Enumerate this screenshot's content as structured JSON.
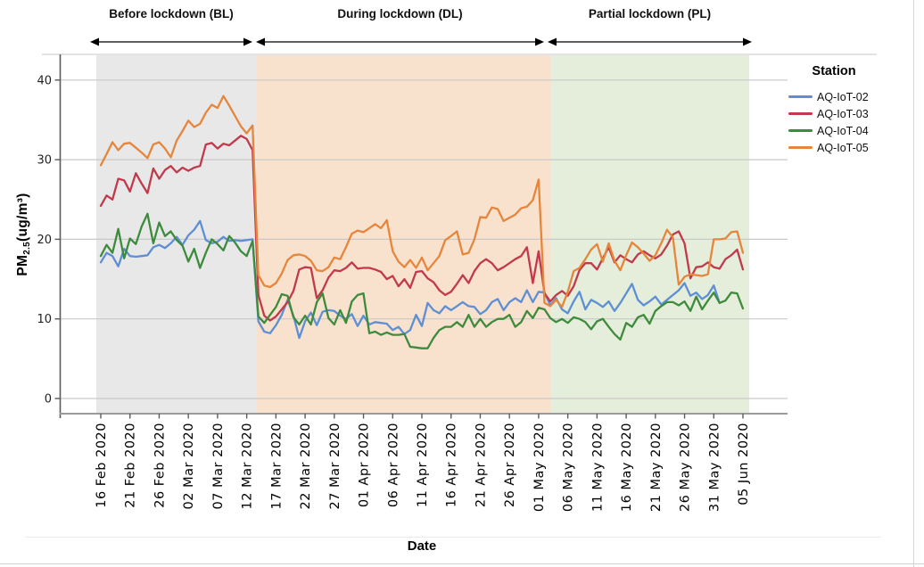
{
  "chart_data": {
    "type": "line",
    "title": "",
    "xlabel": "Date",
    "ylabel": "PM2.5(ug/m3)",
    "ylabel_parts": {
      "main": "PM",
      "sub": "2.5",
      "unit": "(ug/m³)"
    },
    "ylim": [
      0,
      43
    ],
    "yticks": [
      0,
      10,
      20,
      30,
      40
    ],
    "grid": "horizontal",
    "legend_title": "Station",
    "legend_position": "right",
    "x_start_date": "16 Feb 2020",
    "x_end_date": "05 Jun 2020",
    "x_unit": "day",
    "x_tick_interval_days": 5,
    "x_tick_labels": [
      "16 Feb 2020",
      "21 Feb 2020",
      "26 Feb 2020",
      "02 Mar 2020",
      "07 Mar 2020",
      "12 Mar 2020",
      "17 Mar 2020",
      "22 Mar 2020",
      "27 Mar 2020",
      "01 Apr 2020",
      "06 Apr 2020",
      "11 Apr 2020",
      "16 Apr 2020",
      "21 Apr 2020",
      "26 Apr 2020",
      "01 May 2020",
      "06 May 2020",
      "11 May 2020",
      "16 May 2020",
      "21 May 2020",
      "26 May 2020",
      "31 May 2020",
      "05 Jun 2020"
    ],
    "regions": [
      {
        "label": "Before lockdown (BL)",
        "start_date": "16 Feb 2020",
        "end_date": "13 Mar 2020",
        "band_color": "#e8e8e8"
      },
      {
        "label": "During lockdown (DL)",
        "start_date": "14 Mar 2020",
        "end_date": "01 May 2020",
        "band_color": "#f9e2cd"
      },
      {
        "label": "Partial lockdown (PL)",
        "start_date": "02 May 2020",
        "end_date": "05 Jun 2020",
        "band_color": "#e5eeda"
      }
    ],
    "series": [
      {
        "name": "AQ-IoT-02",
        "color": "#5e8fd5",
        "start_date": "16 Feb 2020",
        "values": [
          17.1,
          18.3,
          17.9,
          16.6,
          18.8,
          17.9,
          17.8,
          17.9,
          18.0,
          19.0,
          19.3,
          18.9,
          19.5,
          20.3,
          19.3,
          20.5,
          21.2,
          22.3,
          19.9,
          19.5,
          19.7,
          20.3,
          19.8,
          19.9,
          19.8,
          19.9,
          20.0,
          9.7,
          8.4,
          8.2,
          9.2,
          10.5,
          12.4,
          10.4,
          7.6,
          9.7,
          10.8,
          9.2,
          10.9,
          11.1,
          11.0,
          10.4,
          10.0,
          10.6,
          9.1,
          10.4,
          9.3,
          9.6,
          9.5,
          9.4,
          8.6,
          9.0,
          8.1,
          8.6,
          10.5,
          9.1,
          12.0,
          11.1,
          10.7,
          11.6,
          11.1,
          11.6,
          12.1,
          11.6,
          11.5,
          10.6,
          11.1,
          12.1,
          12.5,
          11.1,
          12.1,
          12.6,
          12.1,
          13.6,
          12.1,
          13.4,
          13.3,
          11.7,
          12.6,
          11.2,
          10.7,
          12.2,
          13.4,
          11.2,
          12.4,
          12.0,
          11.5,
          12.2,
          11.0,
          12.0,
          13.2,
          14.4,
          12.4,
          11.7,
          12.2,
          12.8,
          11.8,
          12.4,
          13.0,
          13.6,
          14.5,
          12.9,
          13.3,
          12.5,
          13.0,
          14.2,
          12.0
        ]
      },
      {
        "name": "AQ-IoT-03",
        "color": "#c13a4c",
        "start_date": "16 Feb 2020",
        "values": [
          24.2,
          25.5,
          25.0,
          27.6,
          27.4,
          26.0,
          28.3,
          27.0,
          25.8,
          28.9,
          27.6,
          28.7,
          29.2,
          28.4,
          29.0,
          28.6,
          29.0,
          29.2,
          31.9,
          32.1,
          31.4,
          32.0,
          31.8,
          32.4,
          33.0,
          32.6,
          31.2,
          13.0,
          10.4,
          9.8,
          10.3,
          11.2,
          12.1,
          13.5,
          16.2,
          16.5,
          16.4,
          12.6,
          13.6,
          15.2,
          16.1,
          16.0,
          16.4,
          17.1,
          16.3,
          16.4,
          16.4,
          16.2,
          15.9,
          15.0,
          15.4,
          14.1,
          15.0,
          13.9,
          15.9,
          16.0,
          15.1,
          14.6,
          13.6,
          13.0,
          13.4,
          14.4,
          15.5,
          14.5,
          16.0,
          17.0,
          17.5,
          17.0,
          16.1,
          16.5,
          17.0,
          17.5,
          17.9,
          19.0,
          14.5,
          18.5,
          13.2,
          12.2,
          13.0,
          13.5,
          12.9,
          14.1,
          16.1,
          17.0,
          17.0,
          16.2,
          17.6,
          19.0,
          17.1,
          18.0,
          17.5,
          17.1,
          18.1,
          18.5,
          18.0,
          17.6,
          18.1,
          19.2,
          20.6,
          21.0,
          19.5,
          15.1,
          16.5,
          16.6,
          17.1,
          16.5,
          16.3,
          17.5,
          18.0,
          18.7,
          16.2
        ]
      },
      {
        "name": "AQ-IoT-04",
        "color": "#3e8b3d",
        "start_date": "16 Feb 2020",
        "values": [
          17.9,
          19.3,
          18.3,
          21.3,
          17.6,
          20.1,
          19.4,
          21.6,
          23.2,
          19.5,
          22.1,
          20.4,
          21.0,
          19.9,
          19.2,
          17.2,
          18.8,
          16.4,
          18.3,
          20.0,
          19.4,
          18.6,
          20.4,
          19.6,
          18.5,
          17.9,
          19.8,
          10.3,
          9.5,
          10.5,
          11.5,
          13.1,
          12.9,
          10.2,
          9.3,
          10.4,
          9.3,
          12.1,
          13.2,
          10.1,
          9.3,
          11.1,
          9.5,
          12.2,
          13.0,
          13.2,
          8.2,
          8.4,
          8.0,
          8.3,
          8.0,
          8.0,
          8.1,
          6.5,
          6.4,
          6.3,
          6.3,
          7.6,
          8.6,
          9.0,
          9.0,
          9.6,
          9.0,
          10.5,
          9.0,
          10.0,
          9.0,
          9.6,
          10.0,
          10.0,
          10.5,
          9.0,
          9.6,
          11.0,
          10.1,
          11.4,
          11.2,
          10.1,
          9.6,
          10.0,
          9.5,
          10.2,
          10.0,
          9.6,
          8.7,
          9.7,
          10.0,
          9.0,
          8.1,
          7.4,
          9.5,
          9.0,
          10.2,
          10.5,
          9.4,
          11.0,
          11.6,
          12.1,
          12.1,
          11.7,
          12.2,
          11.0,
          12.8,
          11.2,
          12.3,
          13.3,
          12.0,
          12.3,
          13.3,
          13.2,
          11.3
        ]
      },
      {
        "name": "AQ-IoT-05",
        "color": "#e5863c",
        "start_date": "16 Feb 2020",
        "values": [
          29.3,
          30.7,
          32.2,
          31.2,
          32.0,
          32.1,
          31.5,
          30.9,
          30.2,
          31.9,
          32.2,
          31.4,
          30.3,
          32.4,
          33.6,
          34.9,
          34.1,
          34.5,
          35.9,
          36.9,
          36.5,
          38.0,
          36.8,
          35.5,
          34.2,
          33.3,
          34.3,
          15.5,
          14.2,
          14.0,
          14.5,
          15.7,
          17.4,
          18.0,
          18.1,
          17.9,
          17.3,
          16.1,
          16.0,
          16.5,
          17.7,
          17.5,
          19.0,
          20.7,
          21.1,
          20.9,
          21.4,
          21.9,
          21.4,
          22.4,
          18.5,
          17.2,
          16.5,
          17.4,
          16.4,
          17.7,
          16.1,
          17.0,
          17.9,
          19.9,
          20.4,
          21.0,
          18.1,
          18.3,
          20.0,
          22.8,
          22.7,
          24.0,
          23.8,
          22.3,
          22.7,
          23.1,
          23.9,
          24.1,
          24.9,
          27.5,
          12.0,
          11.6,
          12.4,
          11.5,
          13.4,
          16.0,
          16.4,
          17.5,
          18.7,
          19.4,
          17.2,
          19.5,
          17.3,
          16.1,
          18.0,
          19.6,
          19.0,
          18.2,
          17.3,
          18.0,
          19.5,
          21.2,
          20.2,
          14.3,
          15.3,
          15.6,
          15.5,
          15.4,
          15.6,
          20.0,
          20.0,
          20.1,
          20.9,
          21.0,
          18.3
        ]
      }
    ]
  }
}
